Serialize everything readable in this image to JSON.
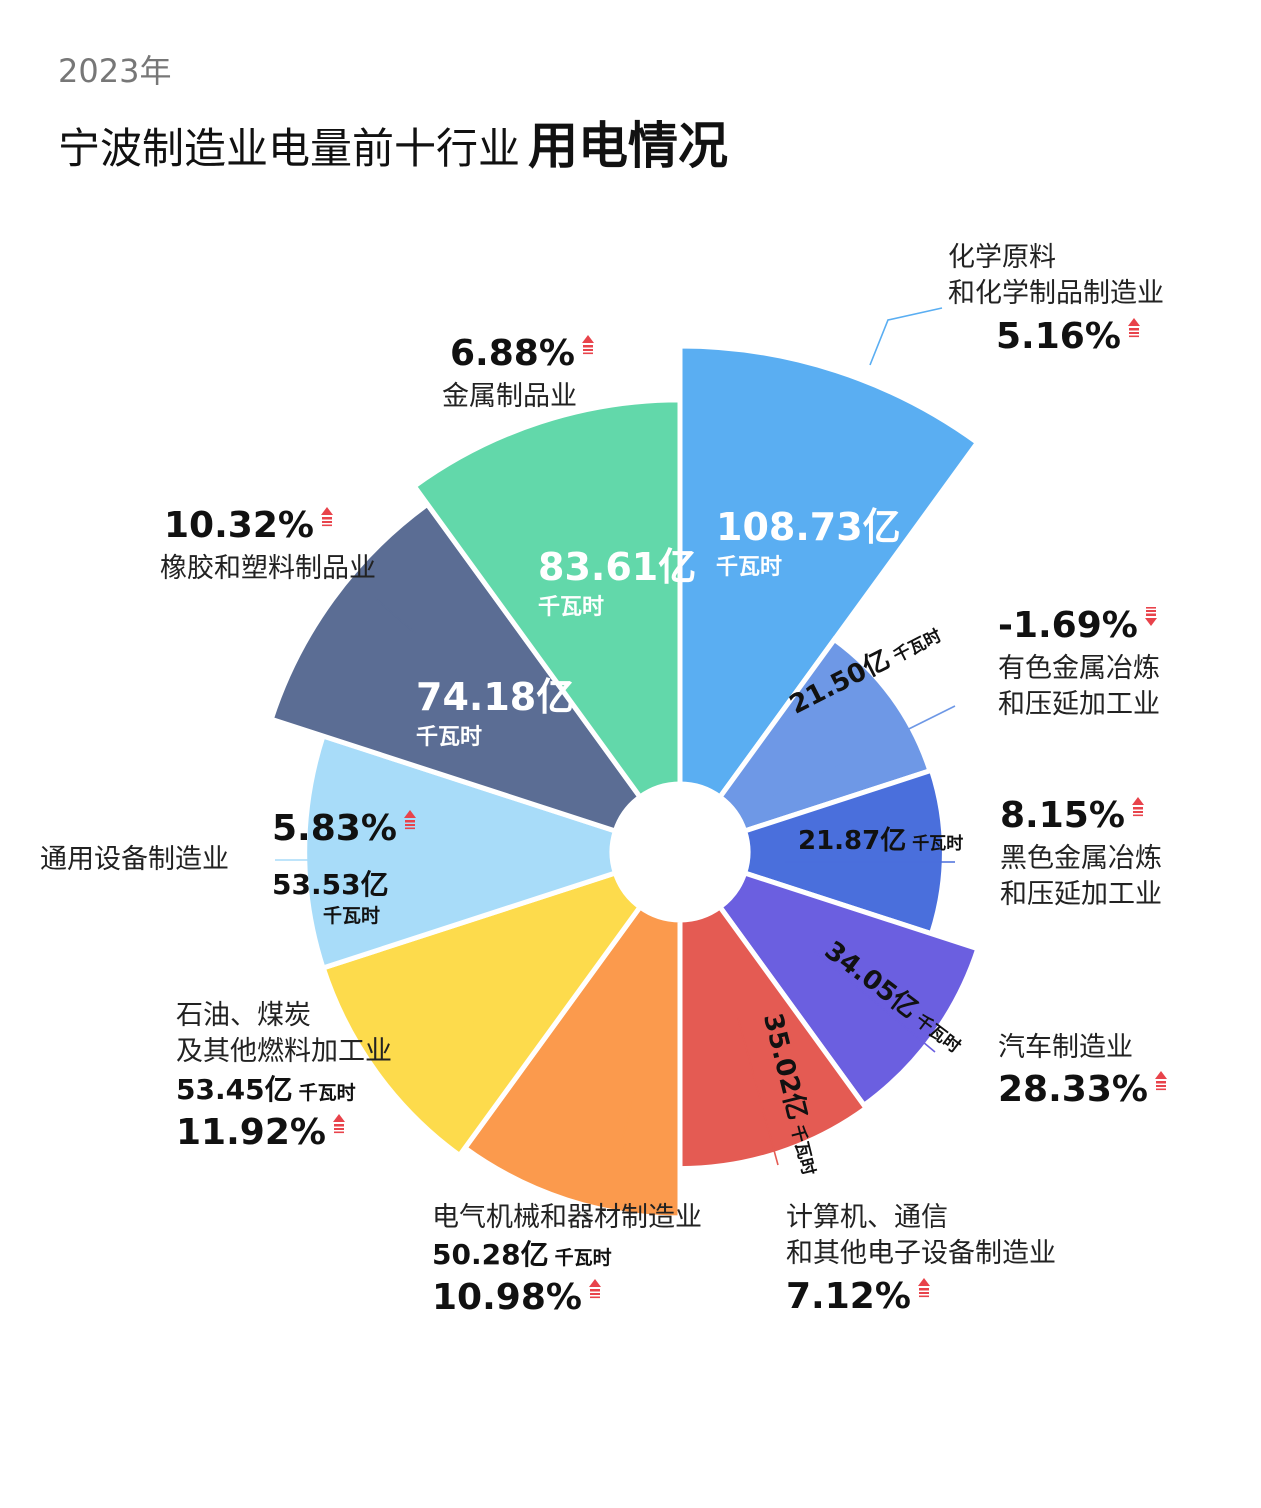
{
  "header": {
    "year": "2023年",
    "title_main": "宁波制造业电量前十行业",
    "title_bold": "用电情况"
  },
  "colors": {
    "up_arrow": "#e8434b",
    "down_arrow": "#e8434b"
  },
  "chart_data": {
    "type": "polar-area (nightingale rose)",
    "unit": "千瓦时",
    "series": [
      {
        "name": "化学原料和化学制品制造业",
        "value_text": "108.73亿",
        "value": 108.73,
        "growth": "5.16%",
        "direction": "up",
        "color": "#5aaef2"
      },
      {
        "name": "有色金属冶炼和压延加工业",
        "value_text": "21.50亿",
        "value": 21.5,
        "growth": "-1.69%",
        "direction": "down",
        "color": "#6e98e6"
      },
      {
        "name": "黑色金属冶炼和压延加工业",
        "value_text": "21.87亿",
        "value": 21.87,
        "growth": "8.15%",
        "direction": "up",
        "color": "#4a6fdc"
      },
      {
        "name": "汽车制造业",
        "value_text": "34.05亿",
        "value": 34.05,
        "growth": "28.33%",
        "direction": "up",
        "color": "#6b5fe0"
      },
      {
        "name": "计算机、通信和其他电子设备制造业",
        "value_text": "35.02亿",
        "value": 35.02,
        "growth": "7.12%",
        "direction": "up",
        "color": "#e45b53"
      },
      {
        "name": "电气机械和器材制造业",
        "value_text": "50.28亿",
        "value": 50.28,
        "growth": "10.98%",
        "direction": "up",
        "color": "#fb9a4d"
      },
      {
        "name": "石油、煤炭及其他燃料加工业",
        "value_text": "53.45亿",
        "value": 53.45,
        "growth": "11.92%",
        "direction": "up",
        "color": "#fddb4c"
      },
      {
        "name": "通用设备制造业",
        "value_text": "53.53亿",
        "value": 53.53,
        "growth": "5.83%",
        "direction": "up",
        "color": "#a8dcf9"
      },
      {
        "name": "橡胶和塑料制品业",
        "value_text": "74.18亿",
        "value": 74.18,
        "growth": "10.32%",
        "direction": "up",
        "color": "#5b6d94"
      },
      {
        "name": "金属制品业",
        "value_text": "83.61亿",
        "value": 83.61,
        "growth": "6.88%",
        "direction": "up",
        "color": "#62d8aa"
      }
    ]
  },
  "labels": {
    "chem_name_1": "化学原料",
    "chem_name_2": "和化学制品制造业",
    "nonferrous_name_1": "有色金属冶炼",
    "nonferrous_name_2": "和压延加工业",
    "ferrous_name_1": "黑色金属冶炼",
    "ferrous_name_2": "和压延加工业",
    "petro_name_1": "石油、煤炭",
    "petro_name_2": "及其他燃料加工业",
    "computer_name_1": "计算机、通信",
    "computer_name_2": "和其他电子设备制造业"
  }
}
